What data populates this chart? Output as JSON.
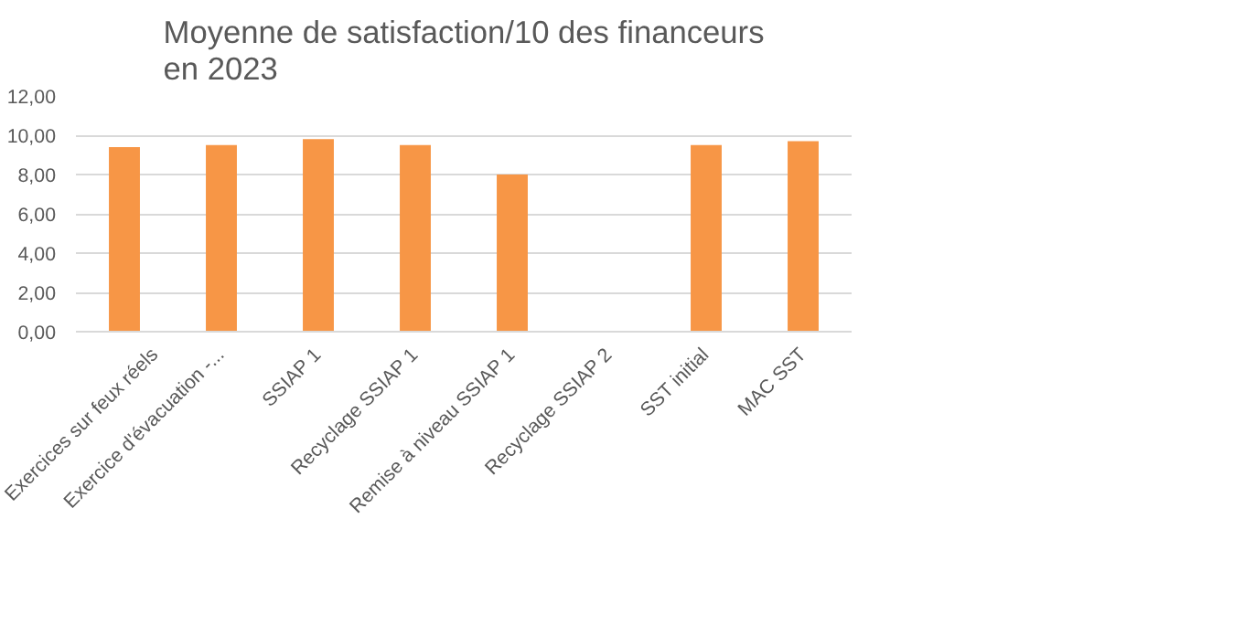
{
  "chart_data": {
    "type": "bar",
    "title": "Moyenne de satisfaction/10 des financeurs\nen 2023",
    "categories": [
      "Exercices sur feux réels",
      "Exercice d'évacuation -...",
      "SSIAP 1",
      "Recyclage SSIAP 1",
      "Remise à niveau SSIAP 1",
      "Recyclage SSIAP 2",
      "SST initial",
      "MAC SST"
    ],
    "values": [
      9.4,
      9.5,
      9.8,
      9.5,
      8.0,
      null,
      9.5,
      9.7
    ],
    "color": "#f79646",
    "ylim": [
      0,
      12
    ],
    "yticks": [
      {
        "value": 0,
        "label": "0,00"
      },
      {
        "value": 2,
        "label": "2,00"
      },
      {
        "value": 4,
        "label": "4,00"
      },
      {
        "value": 6,
        "label": "6,00"
      },
      {
        "value": 8,
        "label": "8,00"
      },
      {
        "value": 10,
        "label": "10,00"
      },
      {
        "value": 12,
        "label": "12,00"
      }
    ],
    "grid": "y"
  }
}
